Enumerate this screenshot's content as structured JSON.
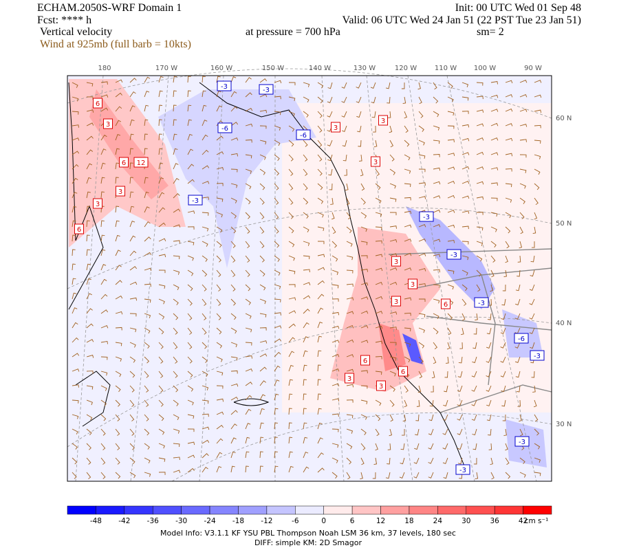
{
  "header": {
    "left": [
      "ECHAM.2050S-WRF Domain 1",
      "Fcst: **** h",
      "Vertical velocity"
    ],
    "wind_note": "Wind at 925mb (full barb = 10kts)",
    "init": "Init: 00 UTC Wed 01 Sep 48",
    "valid": "Valid: 06 UTC Wed 24 Jan 51 (22 PST Tue 23 Jan 51)",
    "pressure": "at pressure =  700 hPa",
    "smoothing": "sm= 2"
  },
  "map": {
    "lon_labels": [
      "180",
      "170 W",
      "160 W",
      "150 W",
      "140 W",
      "130 W",
      "120 W",
      "110 W",
      "100 W",
      "90 W"
    ],
    "lat_labels": [
      "60 N",
      "50 N",
      "40 N",
      "30 N"
    ],
    "contour_labels": [
      6,
      3,
      6,
      12,
      3,
      3,
      6,
      3,
      3,
      3,
      3,
      3,
      3,
      6,
      6,
      3,
      3,
      6,
      -3,
      -3,
      -6,
      -6,
      -3,
      -3,
      -3,
      -3,
      -6,
      -3,
      -3,
      -3
    ]
  },
  "colorbar": {
    "ticks": [
      -48,
      -42,
      -36,
      -30,
      -24,
      -18,
      -12,
      -6,
      0,
      6,
      12,
      18,
      24,
      30,
      36,
      42
    ],
    "colors": [
      "#0000ff",
      "#1a1aff",
      "#3535ff",
      "#5050ff",
      "#6a6aff",
      "#8585ff",
      "#a0a0ff",
      "#c5c5ff",
      "#ebebff",
      "#ffebeb",
      "#ffc5c5",
      "#ffa0a0",
      "#ff8585",
      "#ff6a6a",
      "#ff5050",
      "#ff3535",
      "#ff0000"
    ],
    "unit": "cm s⁻¹"
  },
  "footer": [
    "Model Info: V3.1.1   KF    YSU PBL   Thompson    Noah LSM  36 km,   37 levels,  180 sec",
    "DIFF: simple KM: 2D Smagor"
  ]
}
